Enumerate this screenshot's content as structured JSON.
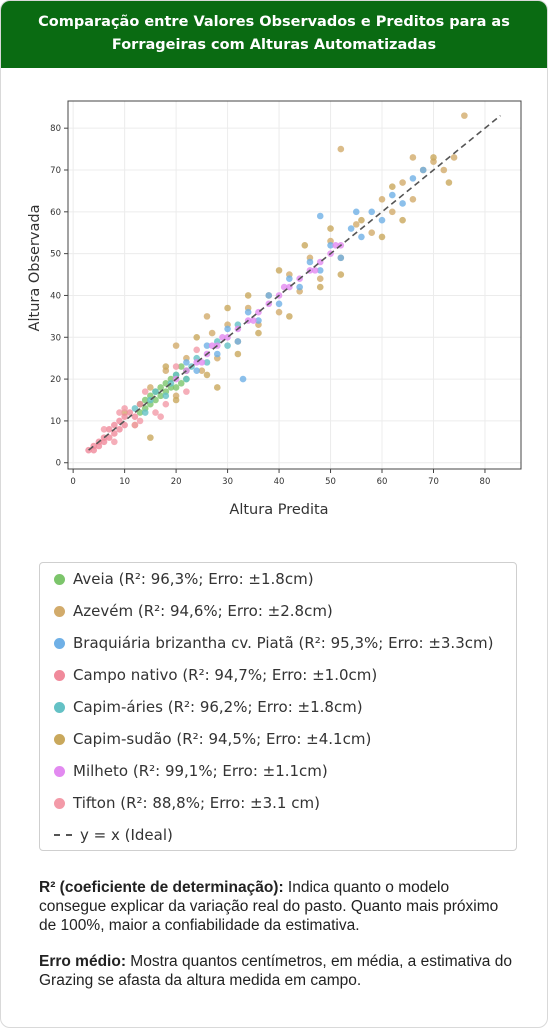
{
  "header": {
    "title_line1": "Comparação entre Valores Observados e Preditos para as",
    "title_line2": "Forrageiras com Alturas Automatizadas"
  },
  "chart_data": {
    "type": "scatter",
    "title": "",
    "xlabel": "Altura Predita",
    "ylabel": "Altura Observada",
    "xlim": [
      -1,
      87
    ],
    "ylim": [
      -1.5,
      86.5
    ],
    "xticks": [
      0,
      10,
      20,
      30,
      40,
      50,
      60,
      70,
      80
    ],
    "yticks": [
      0,
      10,
      20,
      30,
      40,
      50,
      60,
      70,
      80
    ],
    "grid": true,
    "reference_line": {
      "label": "y = x (Ideal)",
      "from": [
        3,
        3
      ],
      "to": [
        83,
        83
      ],
      "color": "#555555"
    },
    "series": [
      {
        "name": "Aveia (R²: 96,3%; Erro: ±1.8cm)",
        "color": "#7cc56b",
        "points": [
          [
            13,
            14
          ],
          [
            14,
            13
          ],
          [
            15,
            16
          ],
          [
            16,
            15
          ],
          [
            17,
            18
          ],
          [
            18,
            17
          ],
          [
            19,
            20
          ],
          [
            20,
            21
          ],
          [
            21,
            19
          ],
          [
            22,
            22
          ],
          [
            15,
            14
          ],
          [
            17,
            16
          ],
          [
            19,
            18
          ],
          [
            14,
            15
          ],
          [
            18,
            19
          ],
          [
            20,
            18
          ],
          [
            16,
            17
          ],
          [
            21,
            23
          ],
          [
            13,
            12
          ],
          [
            22,
            20
          ]
        ]
      },
      {
        "name": "Azevém (R²: 94,6%; Erro: ±2.8cm)",
        "color": "#d2ab6b",
        "points": [
          [
            10,
            12
          ],
          [
            12,
            9
          ],
          [
            15,
            18
          ],
          [
            18,
            22
          ],
          [
            20,
            16
          ],
          [
            22,
            25
          ],
          [
            25,
            22
          ],
          [
            27,
            31
          ],
          [
            28,
            25
          ],
          [
            30,
            33
          ],
          [
            32,
            29
          ],
          [
            34,
            37
          ],
          [
            36,
            33
          ],
          [
            38,
            40
          ],
          [
            40,
            36
          ],
          [
            42,
            45
          ],
          [
            44,
            41
          ],
          [
            46,
            49
          ],
          [
            48,
            44
          ],
          [
            50,
            53
          ],
          [
            52,
            49
          ],
          [
            55,
            57
          ],
          [
            58,
            55
          ],
          [
            60,
            63
          ],
          [
            62,
            60
          ],
          [
            64,
            67
          ],
          [
            66,
            63
          ],
          [
            68,
            70
          ],
          [
            70,
            72
          ],
          [
            72,
            70
          ],
          [
            74,
            73
          ],
          [
            76,
            83
          ],
          [
            52,
            75
          ],
          [
            66,
            73
          ],
          [
            20,
            28
          ],
          [
            26,
            35
          ]
        ]
      },
      {
        "name": "Braquiária brizantha cv. Piatã (R²: 95,3%; Erro: ±3.3cm)",
        "color": "#6fb0e6",
        "points": [
          [
            22,
            24
          ],
          [
            24,
            22
          ],
          [
            26,
            28
          ],
          [
            28,
            26
          ],
          [
            30,
            32
          ],
          [
            32,
            29
          ],
          [
            34,
            36
          ],
          [
            36,
            34
          ],
          [
            38,
            40
          ],
          [
            40,
            38
          ],
          [
            42,
            44
          ],
          [
            44,
            42
          ],
          [
            46,
            48
          ],
          [
            48,
            46
          ],
          [
            50,
            52
          ],
          [
            52,
            49
          ],
          [
            54,
            56
          ],
          [
            56,
            54
          ],
          [
            58,
            60
          ],
          [
            60,
            58
          ],
          [
            62,
            64
          ],
          [
            64,
            62
          ],
          [
            66,
            68
          ],
          [
            68,
            70
          ],
          [
            33,
            20
          ],
          [
            48,
            59
          ],
          [
            55,
            60
          ]
        ]
      },
      {
        "name": "Campo nativo (R²: 94,7%; Erro: ±1.0cm)",
        "color": "#f08a9b",
        "points": [
          [
            3,
            3
          ],
          [
            4,
            4
          ],
          [
            5,
            5
          ],
          [
            6,
            6
          ],
          [
            7,
            8
          ],
          [
            8,
            7
          ],
          [
            9,
            10
          ],
          [
            10,
            9
          ],
          [
            11,
            12
          ],
          [
            12,
            11
          ],
          [
            13,
            14
          ],
          [
            6,
            5
          ],
          [
            8,
            9
          ],
          [
            5,
            4
          ],
          [
            7,
            6
          ],
          [
            10,
            11
          ],
          [
            4,
            3
          ],
          [
            9,
            8
          ]
        ]
      },
      {
        "name": "Capim-áries (R²: 96,2%; Erro: ±1.8cm)",
        "color": "#64c1c5",
        "points": [
          [
            12,
            13
          ],
          [
            14,
            12
          ],
          [
            16,
            17
          ],
          [
            18,
            16
          ],
          [
            20,
            21
          ],
          [
            22,
            20
          ],
          [
            24,
            25
          ],
          [
            26,
            24
          ],
          [
            28,
            29
          ],
          [
            30,
            28
          ],
          [
            32,
            33
          ],
          [
            15,
            15
          ],
          [
            19,
            19
          ],
          [
            23,
            23
          ]
        ]
      },
      {
        "name": "Capim-sudão (R²: 94,5%; Erro: ±4.1cm)",
        "color": "#c9a85c",
        "points": [
          [
            18,
            23
          ],
          [
            20,
            15
          ],
          [
            24,
            30
          ],
          [
            26,
            21
          ],
          [
            30,
            37
          ],
          [
            32,
            26
          ],
          [
            34,
            40
          ],
          [
            36,
            31
          ],
          [
            40,
            46
          ],
          [
            42,
            35
          ],
          [
            45,
            52
          ],
          [
            48,
            42
          ],
          [
            50,
            56
          ],
          [
            52,
            45
          ],
          [
            56,
            58
          ],
          [
            60,
            54
          ],
          [
            62,
            66
          ],
          [
            64,
            58
          ],
          [
            70,
            73
          ],
          [
            73,
            67
          ],
          [
            15,
            6
          ],
          [
            28,
            18
          ]
        ]
      },
      {
        "name": "Milheto (R²: 99,1%; Erro: ±1.1cm)",
        "color": "#e28af0",
        "points": [
          [
            20,
            20
          ],
          [
            22,
            22
          ],
          [
            24,
            24
          ],
          [
            26,
            26
          ],
          [
            28,
            28
          ],
          [
            30,
            30
          ],
          [
            32,
            32
          ],
          [
            34,
            34
          ],
          [
            36,
            36
          ],
          [
            38,
            38
          ],
          [
            40,
            40
          ],
          [
            42,
            42
          ],
          [
            44,
            44
          ],
          [
            46,
            46
          ],
          [
            48,
            48
          ],
          [
            50,
            50
          ],
          [
            52,
            52
          ],
          [
            25,
            24
          ],
          [
            29,
            30
          ],
          [
            35,
            34
          ],
          [
            41,
            42
          ],
          [
            47,
            46
          ],
          [
            51,
            52
          ],
          [
            27,
            28
          ]
        ]
      },
      {
        "name": "Tifton (R²: 88,8%; Erro: ±3.1 cm)",
        "color": "#f39aa8",
        "points": [
          [
            6,
            8
          ],
          [
            8,
            5
          ],
          [
            10,
            13
          ],
          [
            12,
            9
          ],
          [
            14,
            17
          ],
          [
            16,
            12
          ],
          [
            18,
            14
          ],
          [
            20,
            23
          ],
          [
            22,
            17
          ],
          [
            24,
            27
          ],
          [
            9,
            12
          ],
          [
            13,
            10
          ],
          [
            17,
            11
          ]
        ]
      }
    ]
  },
  "legend": {
    "items": [
      {
        "label": "Aveia (R²: 96,3%; Erro: ±1.8cm)",
        "color": "#7cc56b"
      },
      {
        "label": "Azevém (R²: 94,6%; Erro: ±2.8cm)",
        "color": "#d2ab6b"
      },
      {
        "label": "Braquiária brizantha cv. Piatã (R²: 95,3%; Erro: ±3.3cm)",
        "color": "#6fb0e6"
      },
      {
        "label": "Campo nativo (R²: 94,7%; Erro: ±1.0cm)",
        "color": "#f08a9b"
      },
      {
        "label": "Capim-áries (R²: 96,2%; Erro: ±1.8cm)",
        "color": "#64c1c5"
      },
      {
        "label": "Capim-sudão (R²: 94,5%; Erro: ±4.1cm)",
        "color": "#c9a85c"
      },
      {
        "label": "Milheto (R²: 99,1%; Erro: ±1.1cm)",
        "color": "#e28af0"
      },
      {
        "label": "Tifton (R²: 88,8%; Erro: ±3.1 cm)",
        "color": "#f39aa8"
      }
    ],
    "ideal_label": "y = x (Ideal)"
  },
  "notes": {
    "r2_term": "R² (coeficiente de determinação):",
    "r2_text": " Indica quanto o modelo consegue explicar da variação real do pasto. Quanto mais próximo de 100%, maior a confiabilidade da estimativa.",
    "error_term": "Erro médio:",
    "error_text": " Mostra quantos centímetros, em média, a estimativa do Grazing se afasta da altura medida em campo."
  }
}
